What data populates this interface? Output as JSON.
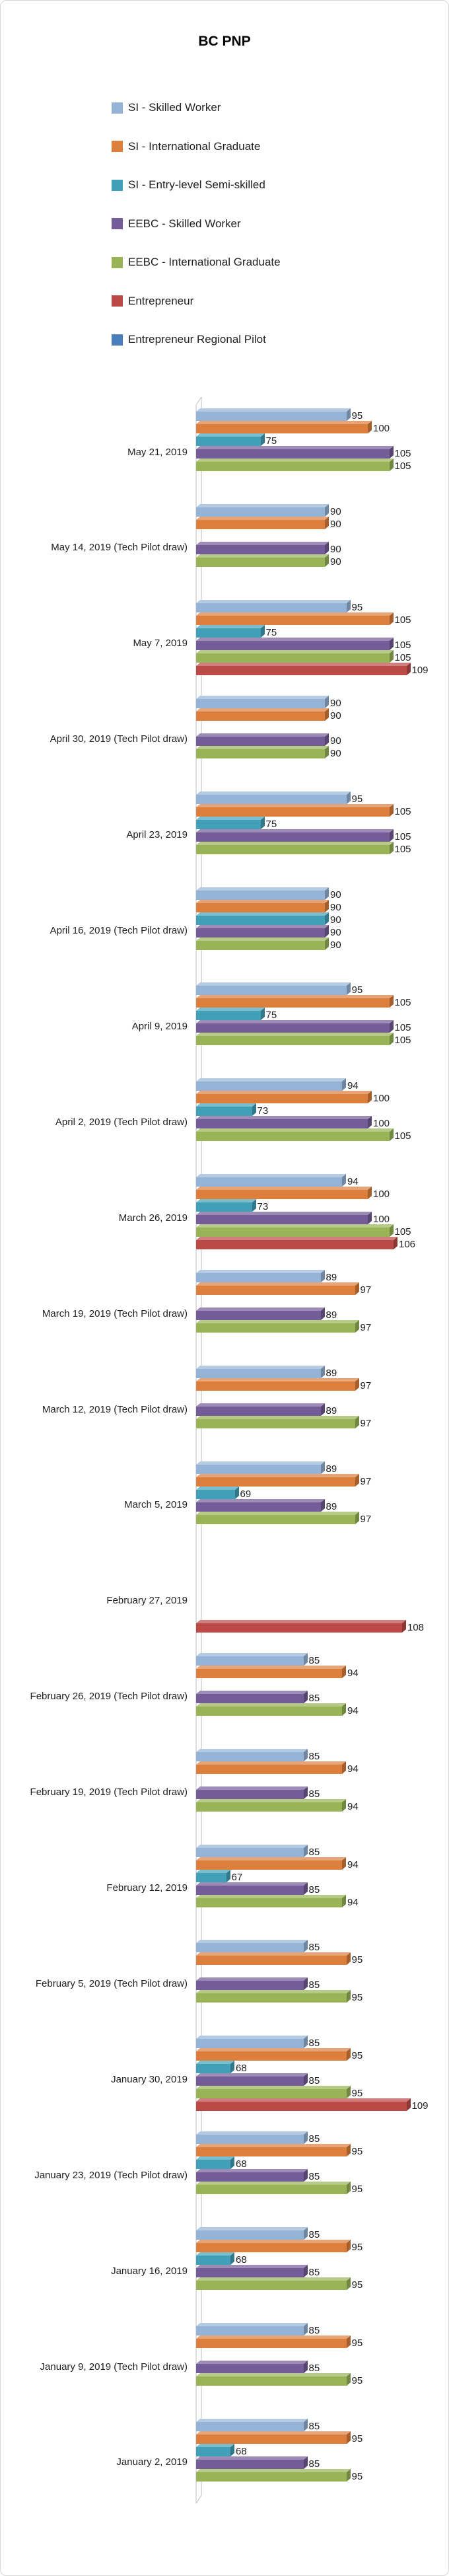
{
  "window": {
    "background_color": "#FFFFFF",
    "frame_border_color": "#D7D7D7"
  },
  "chart_data": {
    "type": "bar",
    "style": "3d",
    "orientation": "horizontal",
    "title": "BC PNP",
    "legend_position": "upper-left-column",
    "data_labels": true,
    "x_axis": {
      "min": 60,
      "max": 115,
      "ticks_visible": false,
      "grid": false
    },
    "series": [
      {
        "name": "SI - Skilled Worker",
        "color": "#95B3D7"
      },
      {
        "name": "SI - International Graduate",
        "color": "#DC7E3C"
      },
      {
        "name": "SI - Entry-level Semi-skilled",
        "color": "#41A0B8"
      },
      {
        "name": "EEBC - Skilled Worker",
        "color": "#735C97"
      },
      {
        "name": "EEBC - International Graduate",
        "color": "#98B457"
      },
      {
        "name": "Entrepreneur",
        "color": "#BB4A47"
      },
      {
        "name": "Entrepreneur Regional Pilot",
        "color": "#4A7EBB"
      }
    ],
    "rows": [
      {
        "category": "May 21, 2019",
        "values": [
          95,
          100,
          75,
          105,
          105,
          null,
          null
        ]
      },
      {
        "category": "May 14, 2019 (Tech Pilot draw)",
        "values": [
          90,
          90,
          null,
          90,
          90,
          null,
          null
        ]
      },
      {
        "category": "May 7, 2019",
        "values": [
          95,
          105,
          75,
          105,
          105,
          109,
          null
        ]
      },
      {
        "category": "April 30, 2019 (Tech Pilot draw)",
        "values": [
          90,
          90,
          null,
          90,
          90,
          null,
          null
        ]
      },
      {
        "category": "April 23, 2019",
        "values": [
          95,
          105,
          75,
          105,
          105,
          null,
          null
        ]
      },
      {
        "category": "April 16, 2019 (Tech Pilot draw)",
        "values": [
          90,
          90,
          90,
          90,
          90,
          null,
          null
        ]
      },
      {
        "category": "April 9, 2019",
        "values": [
          95,
          105,
          75,
          105,
          105,
          null,
          null
        ]
      },
      {
        "category": "April 2, 2019 (Tech Pilot draw)",
        "values": [
          94,
          100,
          73,
          100,
          105,
          null,
          null
        ]
      },
      {
        "category": "March 26, 2019",
        "values": [
          94,
          100,
          73,
          100,
          105,
          106,
          null
        ]
      },
      {
        "category": "March 19, 2019 (Tech Pilot draw)",
        "values": [
          89,
          97,
          null,
          89,
          97,
          null,
          null
        ]
      },
      {
        "category": "March 12, 2019 (Tech Pilot draw)",
        "values": [
          89,
          97,
          null,
          89,
          97,
          null,
          null
        ]
      },
      {
        "category": "March 5, 2019",
        "values": [
          89,
          97,
          69,
          89,
          97,
          null,
          null
        ]
      },
      {
        "category": "February 27, 2019",
        "values": [
          null,
          null,
          null,
          null,
          null,
          108,
          null
        ]
      },
      {
        "category": "February 26, 2019 (Tech Pilot draw)",
        "values": [
          85,
          94,
          null,
          85,
          94,
          null,
          null
        ]
      },
      {
        "category": "February 19, 2019 (Tech Pilot draw)",
        "values": [
          85,
          94,
          null,
          85,
          94,
          null,
          null
        ]
      },
      {
        "category": "February 12, 2019",
        "values": [
          85,
          94,
          67,
          85,
          94,
          null,
          null
        ]
      },
      {
        "category": "February 5, 2019 (Tech Pilot draw)",
        "values": [
          85,
          95,
          null,
          85,
          95,
          null,
          null
        ]
      },
      {
        "category": "January 30, 2019",
        "values": [
          85,
          95,
          68,
          85,
          95,
          109,
          null
        ]
      },
      {
        "category": "January 23, 2019 (Tech Pilot draw)",
        "values": [
          85,
          95,
          68,
          85,
          95,
          null,
          null
        ]
      },
      {
        "category": "January 16, 2019",
        "values": [
          85,
          95,
          68,
          85,
          95,
          null,
          null
        ]
      },
      {
        "category": "January 9, 2019 (Tech Pilot draw)",
        "values": [
          85,
          95,
          null,
          85,
          95,
          null,
          null
        ]
      },
      {
        "category": "January 2, 2019",
        "values": [
          85,
          95,
          68,
          85,
          95,
          null,
          null
        ]
      }
    ]
  }
}
